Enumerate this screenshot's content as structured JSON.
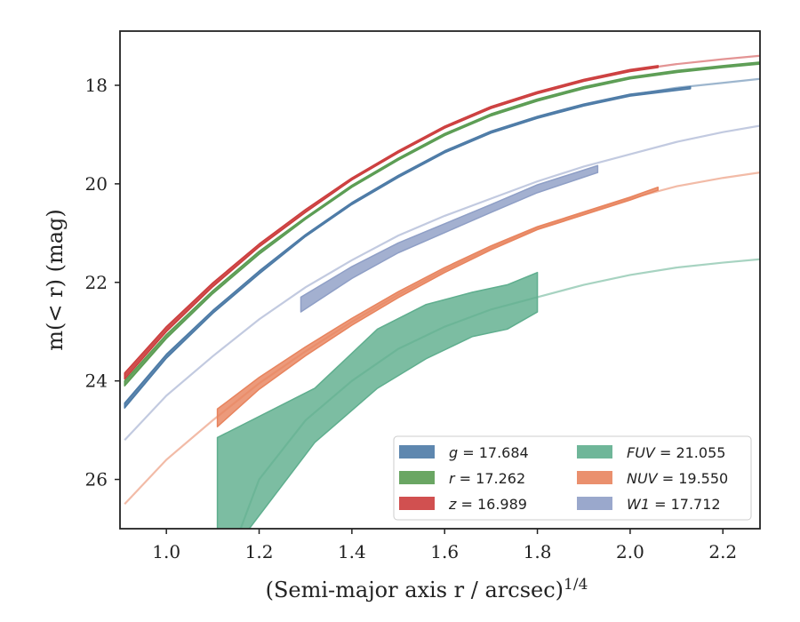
{
  "chart_data": {
    "type": "line",
    "title": "",
    "xlabel": "(Semi-major axis r / arcsec)",
    "xlabel_superscript": "1/4",
    "ylabel": "m(< r) (mag)",
    "xlim": [
      0.9,
      2.28
    ],
    "ylim": [
      27.0,
      16.9
    ],
    "y_inverted": true,
    "grid": false,
    "legend_placement": "bottom-right",
    "x_ticks": [
      "1.0",
      "1.2",
      "1.4",
      "1.6",
      "1.8",
      "2.0",
      "2.2"
    ],
    "y_ticks": [
      "18",
      "20",
      "22",
      "24",
      "26"
    ],
    "series": [
      {
        "name": "g",
        "legend_value": "17.684",
        "color": "#4c7aa6",
        "model_x": [
          0.91,
          1.0,
          1.1,
          1.2,
          1.3,
          1.4,
          1.5,
          1.6,
          1.7,
          1.8,
          1.9,
          2.0,
          2.1,
          2.2,
          2.28
        ],
        "model_y": [
          24.5,
          23.5,
          22.6,
          21.8,
          21.05,
          20.4,
          19.85,
          19.35,
          18.95,
          18.65,
          18.4,
          18.2,
          18.05,
          17.95,
          17.87
        ],
        "data_x": [
          0.91,
          1.0,
          1.1,
          1.2,
          1.3,
          1.4,
          1.5,
          1.6,
          1.7,
          1.8,
          1.9,
          2.0,
          2.13
        ],
        "data_y": [
          24.5,
          23.5,
          22.6,
          21.8,
          21.05,
          20.4,
          19.85,
          19.35,
          18.95,
          18.65,
          18.4,
          18.2,
          18.05
        ],
        "data_err": [
          0.05,
          0.04,
          0.03,
          0.03,
          0.02,
          0.02,
          0.02,
          0.02,
          0.02,
          0.02,
          0.02,
          0.02,
          0.02
        ]
      },
      {
        "name": "r",
        "legend_value": "17.262",
        "color": "#5a9c52",
        "model_x": [
          0.91,
          1.0,
          1.1,
          1.2,
          1.3,
          1.4,
          1.5,
          1.6,
          1.7,
          1.8,
          1.9,
          2.0,
          2.1,
          2.2,
          2.28
        ],
        "model_y": [
          24.05,
          23.1,
          22.2,
          21.4,
          20.7,
          20.05,
          19.5,
          19.0,
          18.6,
          18.3,
          18.05,
          17.85,
          17.72,
          17.62,
          17.55
        ],
        "data_x": [
          0.91,
          1.0,
          1.1,
          1.2,
          1.3,
          1.4,
          1.5,
          1.6,
          1.7,
          1.8,
          1.9,
          2.0,
          2.1,
          2.2,
          2.28
        ],
        "data_y": [
          24.05,
          23.1,
          22.2,
          21.4,
          20.7,
          20.05,
          19.5,
          19.0,
          18.6,
          18.3,
          18.05,
          17.85,
          17.72,
          17.62,
          17.55
        ],
        "data_err": [
          0.05,
          0.04,
          0.03,
          0.03,
          0.02,
          0.02,
          0.02,
          0.02,
          0.02,
          0.02,
          0.02,
          0.02,
          0.02,
          0.02,
          0.02
        ]
      },
      {
        "name": "z",
        "legend_value": "16.989",
        "color": "#cc3d3d",
        "model_x": [
          0.91,
          1.0,
          1.1,
          1.2,
          1.3,
          1.4,
          1.5,
          1.6,
          1.7,
          1.8,
          1.9,
          2.0,
          2.1,
          2.2,
          2.28
        ],
        "model_y": [
          23.9,
          22.95,
          22.05,
          21.25,
          20.55,
          19.9,
          19.35,
          18.85,
          18.45,
          18.15,
          17.9,
          17.7,
          17.57,
          17.47,
          17.4
        ],
        "data_x": [
          0.91,
          1.0,
          1.1,
          1.2,
          1.3,
          1.4,
          1.5,
          1.6,
          1.7,
          1.8,
          1.9,
          2.0,
          2.06
        ],
        "data_y": [
          23.9,
          22.95,
          22.05,
          21.25,
          20.55,
          19.9,
          19.35,
          18.85,
          18.45,
          18.15,
          17.9,
          17.7,
          17.62
        ],
        "data_err": [
          0.06,
          0.05,
          0.04,
          0.03,
          0.03,
          0.02,
          0.02,
          0.02,
          0.02,
          0.02,
          0.02,
          0.02,
          0.02
        ]
      },
      {
        "name": "FUV",
        "legend_value": "21.055",
        "color": "#5fae8e",
        "model_x": [
          1.16,
          1.2,
          1.3,
          1.4,
          1.5,
          1.6,
          1.7,
          1.8,
          1.9,
          2.0,
          2.1,
          2.2,
          2.28
        ],
        "model_y": [
          27.0,
          26.0,
          24.8,
          24.0,
          23.35,
          22.9,
          22.55,
          22.3,
          22.05,
          21.85,
          21.7,
          21.6,
          21.53
        ],
        "data_x": [
          1.11,
          1.32,
          1.455,
          1.56,
          1.66,
          1.735,
          1.8
        ],
        "data_y": [
          26.5,
          24.7,
          23.55,
          23.0,
          22.65,
          22.5,
          22.2
        ],
        "data_err": [
          1.35,
          0.55,
          0.6,
          0.55,
          0.45,
          0.45,
          0.4
        ]
      },
      {
        "name": "NUV",
        "legend_value": "19.550",
        "color": "#e8845e",
        "model_x": [
          0.91,
          1.0,
          1.1,
          1.2,
          1.3,
          1.4,
          1.5,
          1.6,
          1.7,
          1.8,
          1.9,
          2.0,
          2.1,
          2.2,
          2.28
        ],
        "model_y": [
          26.5,
          25.6,
          24.8,
          24.05,
          23.4,
          22.8,
          22.25,
          21.75,
          21.3,
          20.9,
          20.6,
          20.3,
          20.05,
          19.88,
          19.77
        ],
        "data_x": [
          1.11,
          1.2,
          1.3,
          1.4,
          1.5,
          1.6,
          1.7,
          1.8,
          1.9,
          2.0,
          2.06
        ],
        "data_y": [
          24.75,
          24.05,
          23.4,
          22.8,
          22.25,
          21.75,
          21.3,
          20.9,
          20.6,
          20.3,
          20.1
        ],
        "data_err": [
          0.18,
          0.12,
          0.09,
          0.07,
          0.06,
          0.05,
          0.04,
          0.03,
          0.03,
          0.03,
          0.03
        ]
      },
      {
        "name": "W1",
        "legend_value": "17.712",
        "color": "#8f9fc6",
        "model_x": [
          0.91,
          1.0,
          1.1,
          1.2,
          1.3,
          1.4,
          1.5,
          1.6,
          1.7,
          1.8,
          1.9,
          2.0,
          2.1,
          2.2,
          2.28
        ],
        "model_y": [
          25.2,
          24.3,
          23.5,
          22.75,
          22.1,
          21.55,
          21.05,
          20.65,
          20.3,
          19.95,
          19.65,
          19.4,
          19.15,
          18.95,
          18.82
        ],
        "data_x": [
          1.29,
          1.4,
          1.5,
          1.6,
          1.7,
          1.8,
          1.93
        ],
        "data_y": [
          22.45,
          21.8,
          21.3,
          20.9,
          20.5,
          20.1,
          19.7
        ],
        "data_err": [
          0.15,
          0.12,
          0.1,
          0.09,
          0.08,
          0.08,
          0.07
        ]
      }
    ]
  }
}
